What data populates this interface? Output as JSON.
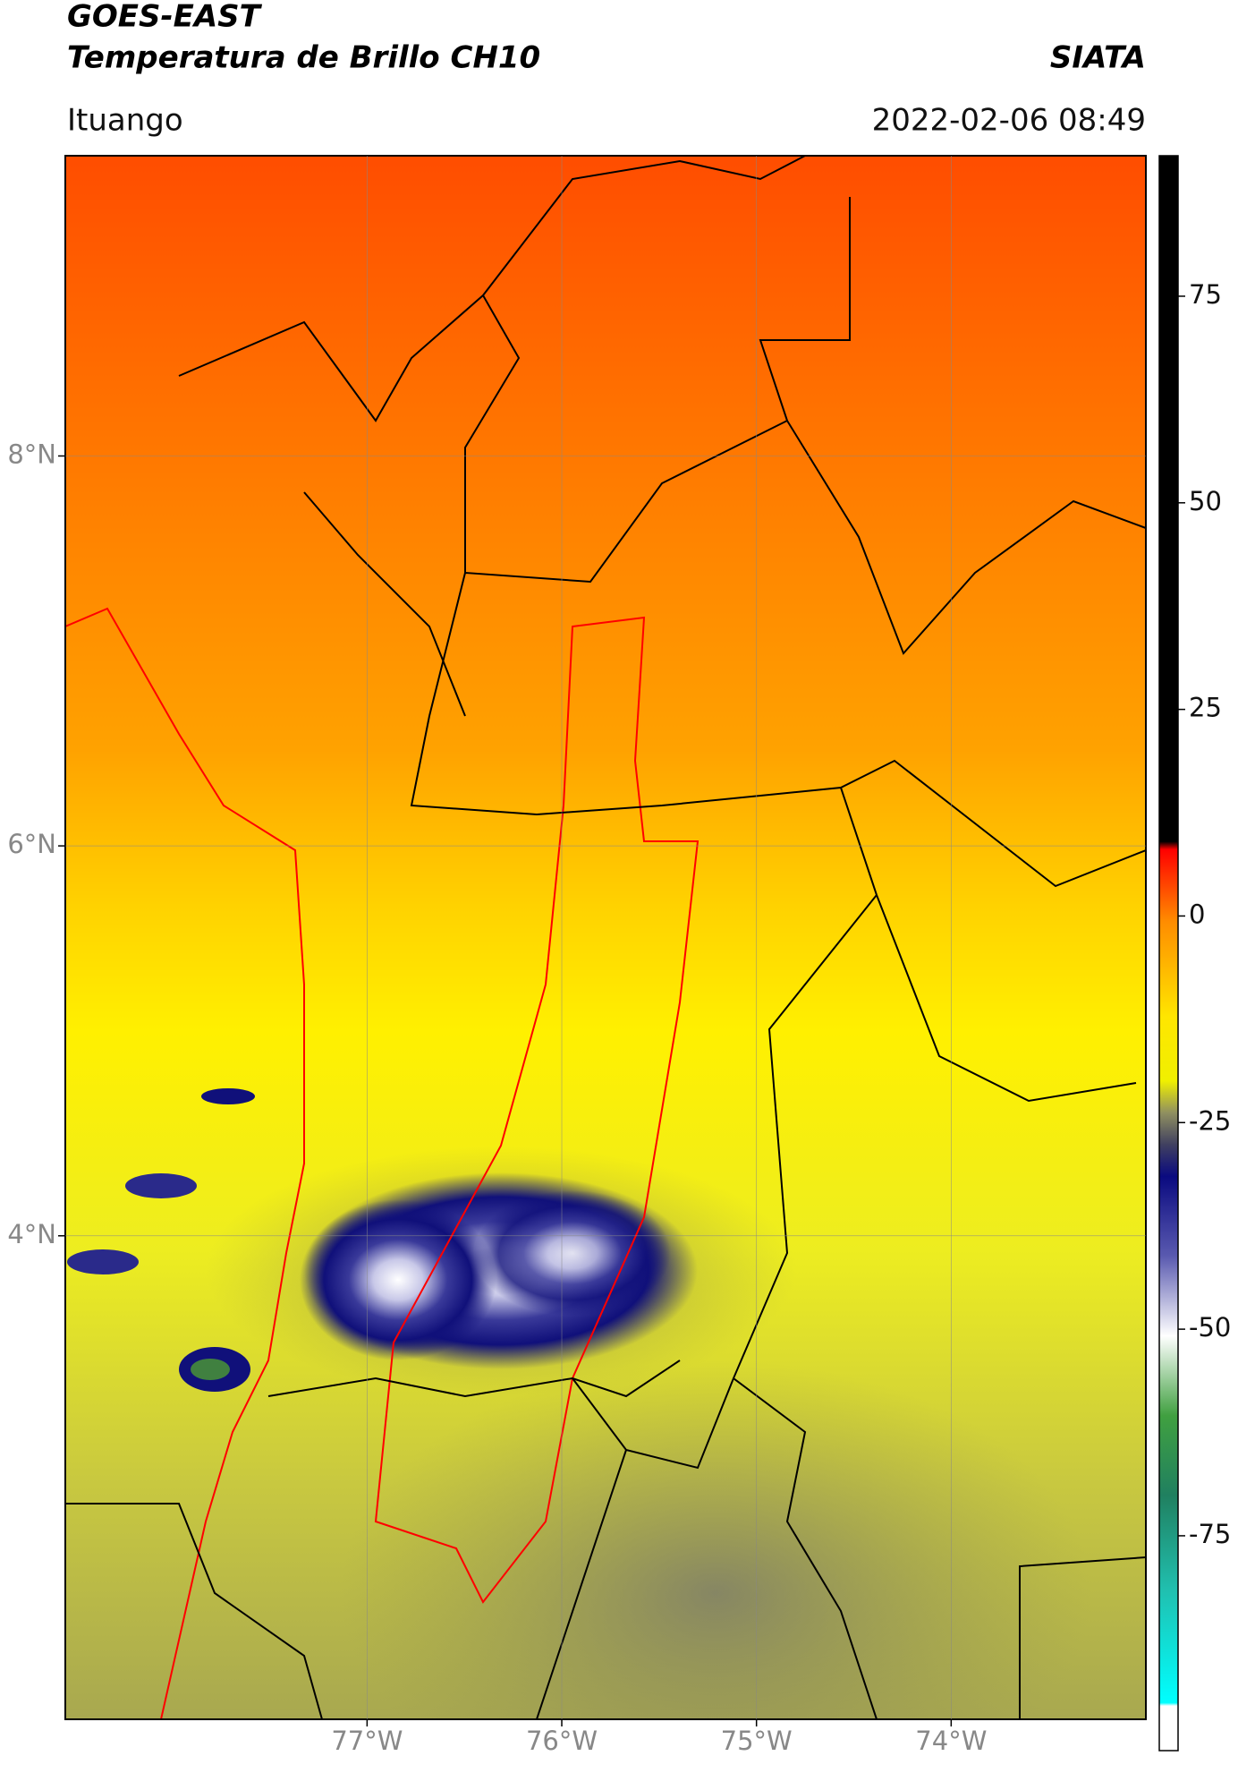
{
  "header": {
    "title": "GOES-EAST",
    "subtitle": "Temperatura de Brillo CH10",
    "source": "SIATA",
    "location": "Ituango",
    "timestamp": "2022-02-06 08:49"
  },
  "map": {
    "xlim": [
      -78.55,
      -73.0
    ],
    "ylim": [
      1.52,
      9.54
    ],
    "xticks": [
      {
        "value": -77,
        "label": "77°W"
      },
      {
        "value": -76,
        "label": "76°W"
      },
      {
        "value": -75,
        "label": "75°W"
      },
      {
        "value": -74,
        "label": "74°W"
      }
    ],
    "yticks": [
      {
        "value": 8,
        "label": "8°N"
      },
      {
        "value": 6,
        "label": "6°N"
      },
      {
        "value": 4,
        "label": "4°N"
      }
    ],
    "grid": true
  },
  "colorbar": {
    "lim": [
      -101,
      92
    ],
    "ticks": [
      75,
      50,
      25,
      0,
      -25,
      -50,
      -75
    ]
  }
}
